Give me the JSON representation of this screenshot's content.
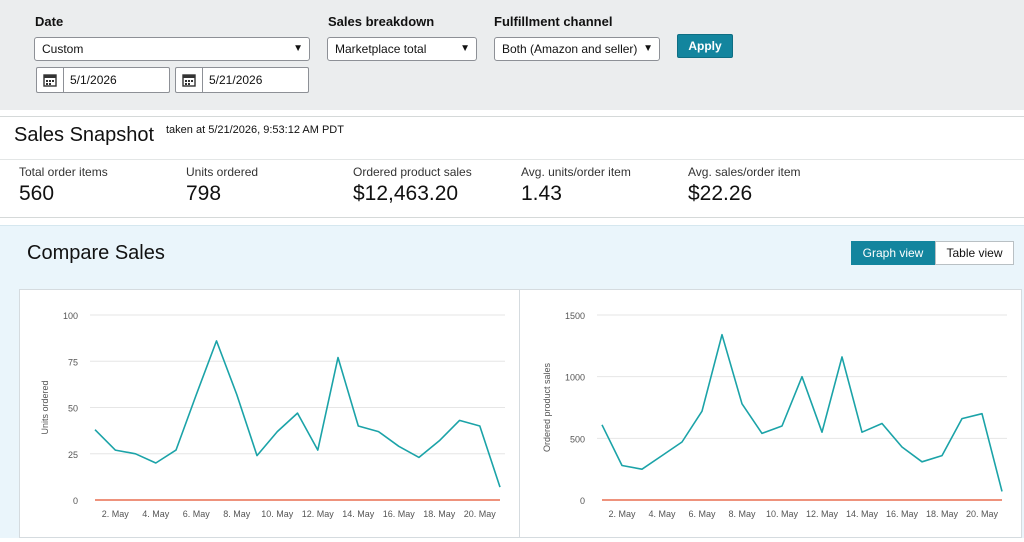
{
  "filters": {
    "date_label": "Date",
    "date_value": "Custom",
    "start_date": "5/1/2026",
    "end_date": "5/21/2026",
    "breakdown_label": "Sales breakdown",
    "breakdown_value": "Marketplace total",
    "channel_label": "Fulfillment channel",
    "channel_value": "Both (Amazon and seller)",
    "apply_label": "Apply"
  },
  "snapshot": {
    "title": "Sales Snapshot",
    "taken": "taken at 5/21/2026, 9:53:12 AM PDT",
    "metrics": [
      {
        "label": "Total order items",
        "value": "560"
      },
      {
        "label": "Units ordered",
        "value": "798"
      },
      {
        "label": "Ordered product sales",
        "value": "$12,463.20"
      },
      {
        "label": "Avg. units/order item",
        "value": "1.43"
      },
      {
        "label": "Avg. sales/order item",
        "value": "$22.26"
      }
    ]
  },
  "compare": {
    "title": "Compare Sales",
    "graph_view_label": "Graph view",
    "table_view_label": "Table view"
  },
  "colors": {
    "accent": "#13859e",
    "series_line": "#1ba3a8",
    "baseline": "#e4522f"
  },
  "chart_data": [
    {
      "type": "line",
      "ylabel": "Units ordered",
      "ylim": [
        0,
        100
      ],
      "yticks": [
        0,
        25,
        50,
        75,
        100
      ],
      "x": [
        1,
        2,
        3,
        4,
        5,
        6,
        7,
        8,
        9,
        10,
        11,
        12,
        13,
        14,
        15,
        16,
        17,
        18,
        19,
        20,
        21
      ],
      "xticklabels": [
        {
          "x": 2,
          "label": "2. May"
        },
        {
          "x": 4,
          "label": "4. May"
        },
        {
          "x": 6,
          "label": "6. May"
        },
        {
          "x": 8,
          "label": "8. May"
        },
        {
          "x": 10,
          "label": "10. May"
        },
        {
          "x": 12,
          "label": "12. May"
        },
        {
          "x": 14,
          "label": "14. May"
        },
        {
          "x": 16,
          "label": "16. May"
        },
        {
          "x": 18,
          "label": "18. May"
        },
        {
          "x": 20,
          "label": "20. May"
        }
      ],
      "series": [
        {
          "values": [
            38,
            27,
            25,
            20,
            27,
            57,
            86,
            57,
            24,
            37,
            47,
            27,
            77,
            40,
            37,
            29,
            23,
            32,
            43,
            40,
            7
          ]
        },
        {
          "values": [
            0,
            0,
            0,
            0,
            0,
            0,
            0,
            0,
            0,
            0,
            0,
            0,
            0,
            0,
            0,
            0,
            0,
            0,
            0,
            0,
            0
          ]
        }
      ],
      "grid": true
    },
    {
      "type": "line",
      "ylabel": "Ordered product sales",
      "ylim": [
        0,
        1500
      ],
      "yticks": [
        0,
        500,
        1000,
        1500
      ],
      "x": [
        1,
        2,
        3,
        4,
        5,
        6,
        7,
        8,
        9,
        10,
        11,
        12,
        13,
        14,
        15,
        16,
        17,
        18,
        19,
        20,
        21
      ],
      "xticklabels": [
        {
          "x": 2,
          "label": "2. May"
        },
        {
          "x": 4,
          "label": "4. May"
        },
        {
          "x": 6,
          "label": "6. May"
        },
        {
          "x": 8,
          "label": "8. May"
        },
        {
          "x": 10,
          "label": "10. May"
        },
        {
          "x": 12,
          "label": "12. May"
        },
        {
          "x": 14,
          "label": "14. May"
        },
        {
          "x": 16,
          "label": "16. May"
        },
        {
          "x": 18,
          "label": "18. May"
        },
        {
          "x": 20,
          "label": "20. May"
        }
      ],
      "series": [
        {
          "values": [
            610,
            280,
            250,
            360,
            470,
            720,
            1340,
            780,
            540,
            600,
            1000,
            550,
            1160,
            550,
            620,
            430,
            310,
            360,
            660,
            700,
            70
          ]
        },
        {
          "values": [
            0,
            0,
            0,
            0,
            0,
            0,
            0,
            0,
            0,
            0,
            0,
            0,
            0,
            0,
            0,
            0,
            0,
            0,
            0,
            0,
            0
          ]
        }
      ],
      "grid": true
    }
  ]
}
